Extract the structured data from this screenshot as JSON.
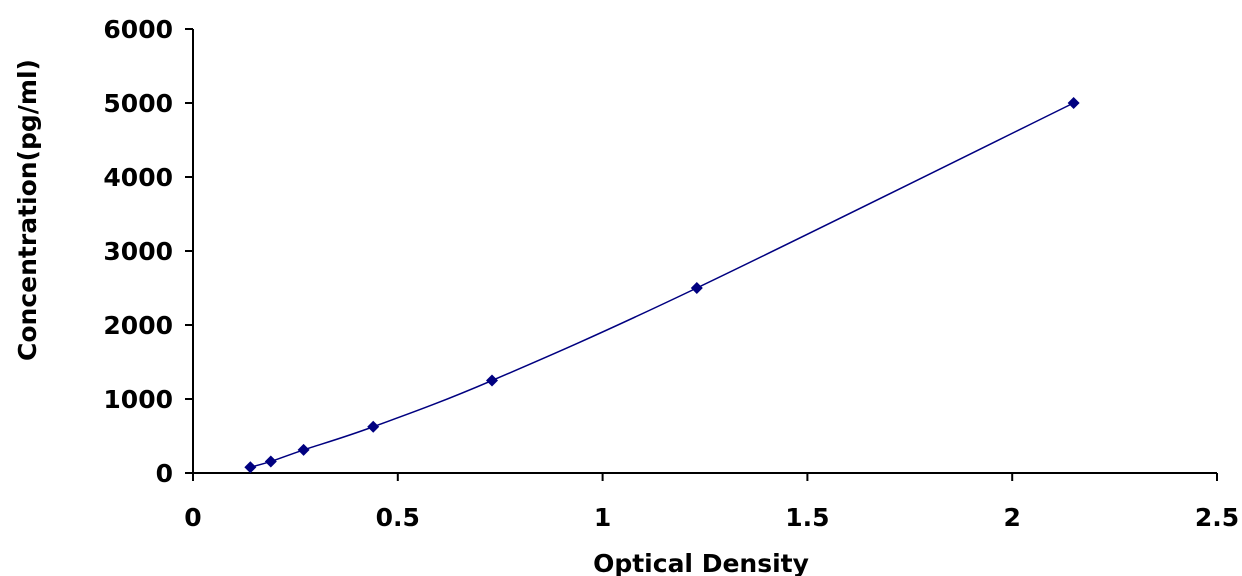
{
  "chart_data": {
    "type": "scatter",
    "title": "",
    "xlabel": "Optical Density",
    "ylabel": "Concentration(pg/ml)",
    "xlim": [
      0,
      2.5
    ],
    "ylim": [
      0,
      6000
    ],
    "x_ticks": [
      "0",
      "0.5",
      "1",
      "1.5",
      "2",
      "2.5"
    ],
    "y_ticks": [
      "0",
      "1000",
      "2000",
      "3000",
      "4000",
      "5000",
      "6000"
    ],
    "grid": false,
    "legend": "none",
    "series": [
      {
        "x": [
          0.14,
          0.19,
          0.27,
          0.44,
          0.73,
          1.23,
          2.15
        ],
        "y": [
          78,
          156,
          312,
          625,
          1250,
          2500,
          5000
        ],
        "marker": "diamond",
        "line": "smooth",
        "color": "#000080"
      }
    ]
  }
}
